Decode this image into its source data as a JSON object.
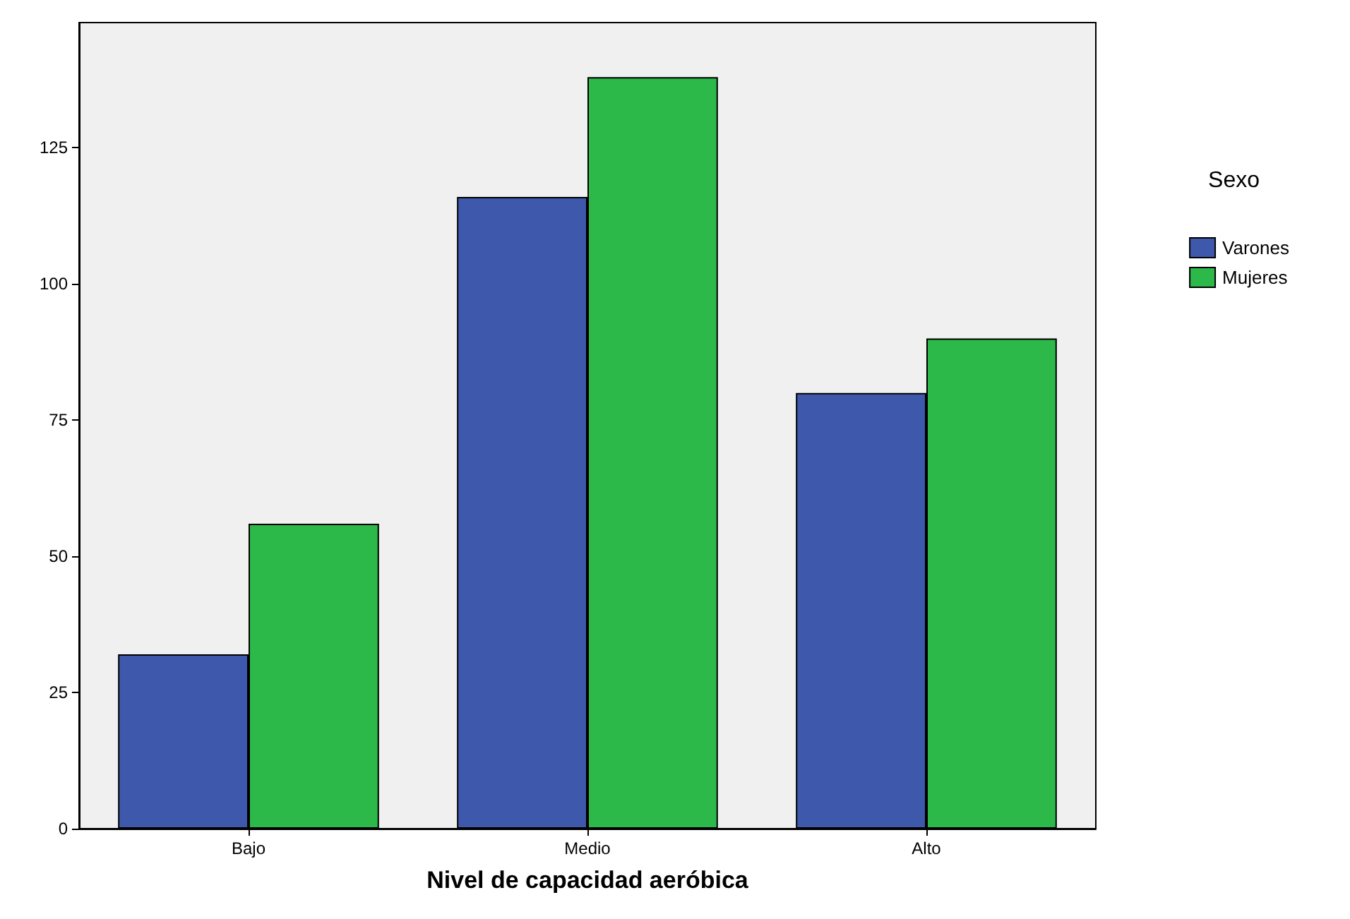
{
  "chart_data": {
    "type": "bar",
    "xlabel": "Nivel de capacidad aeróbica",
    "legend_title": "Sexo",
    "categories": [
      "Bajo",
      "Medio",
      "Alto"
    ],
    "series": [
      {
        "name": "Varones",
        "color": "#3e58ac",
        "values": [
          32,
          116,
          80
        ]
      },
      {
        "name": "Mujeres",
        "color": "#2db84a",
        "values": [
          56,
          138,
          90
        ]
      }
    ],
    "ylim": [
      0,
      148
    ],
    "yticks": [
      0,
      25,
      50,
      75,
      100,
      125
    ],
    "grid": false,
    "legend": "right"
  }
}
